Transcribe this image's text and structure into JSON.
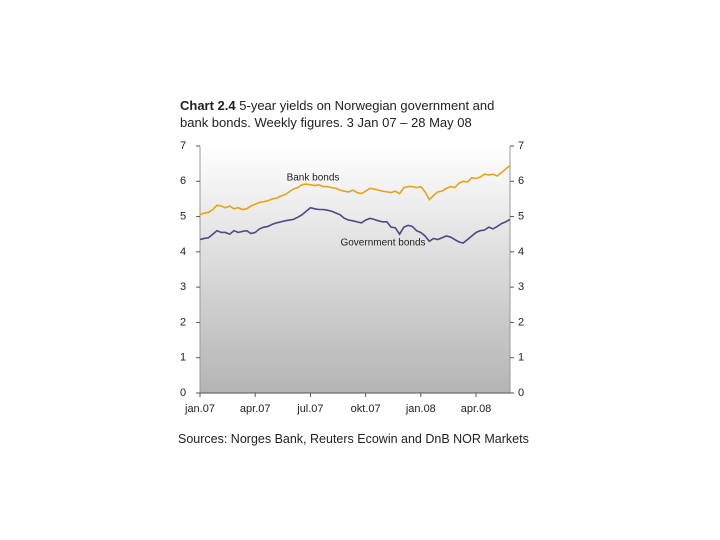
{
  "chart_data": {
    "type": "line",
    "title_label": "Chart 2.4",
    "title": "5-year yields on Norwegian government and bank bonds. Weekly figures. 3 Jan 07 – 28 May 08",
    "source": "Sources: Norges Bank, Reuters Ecowin and DnB NOR Markets",
    "categories": [
      "jan.07",
      null,
      null,
      null,
      null,
      null,
      null,
      null,
      null,
      null,
      null,
      null,
      null,
      "apr.07",
      null,
      null,
      null,
      null,
      null,
      null,
      null,
      null,
      null,
      null,
      null,
      null,
      "jul.07",
      null,
      null,
      null,
      null,
      null,
      null,
      null,
      null,
      null,
      null,
      null,
      null,
      "okt.07",
      null,
      null,
      null,
      null,
      null,
      null,
      null,
      null,
      null,
      null,
      null,
      null,
      "jan.08",
      null,
      null,
      null,
      null,
      null,
      null,
      null,
      null,
      null,
      null,
      null,
      null,
      "apr.08",
      null,
      null,
      null,
      null,
      null,
      null,
      null,
      null
    ],
    "series": [
      {
        "name": "Bank bonds",
        "color": "#e8a21c",
        "values": [
          5.05,
          5.1,
          5.12,
          5.2,
          5.32,
          5.3,
          5.25,
          5.3,
          5.22,
          5.25,
          5.2,
          5.22,
          5.3,
          5.35,
          5.4,
          5.42,
          5.45,
          5.5,
          5.52,
          5.58,
          5.62,
          5.7,
          5.78,
          5.82,
          5.9,
          5.92,
          5.9,
          5.88,
          5.9,
          5.85,
          5.85,
          5.82,
          5.8,
          5.75,
          5.72,
          5.7,
          5.75,
          5.68,
          5.65,
          5.72,
          5.8,
          5.78,
          5.75,
          5.72,
          5.7,
          5.68,
          5.72,
          5.65,
          5.82,
          5.85,
          5.85,
          5.82,
          5.85,
          5.7,
          5.48,
          5.6,
          5.7,
          5.72,
          5.8,
          5.85,
          5.82,
          5.95,
          6.0,
          5.98,
          6.1,
          6.08,
          6.12,
          6.2,
          6.18,
          6.2,
          6.15,
          6.25,
          6.35,
          6.45
        ]
      },
      {
        "name": "Government bonds",
        "color": "#4b4a86",
        "values": [
          4.35,
          4.38,
          4.4,
          4.5,
          4.6,
          4.55,
          4.55,
          4.5,
          4.6,
          4.55,
          4.58,
          4.6,
          4.52,
          4.55,
          4.65,
          4.7,
          4.72,
          4.78,
          4.82,
          4.85,
          4.88,
          4.9,
          4.92,
          4.98,
          5.05,
          5.15,
          5.25,
          5.22,
          5.2,
          5.2,
          5.18,
          5.15,
          5.1,
          5.05,
          4.95,
          4.9,
          4.88,
          4.85,
          4.82,
          4.9,
          4.95,
          4.92,
          4.88,
          4.85,
          4.85,
          4.7,
          4.68,
          4.5,
          4.7,
          4.75,
          4.72,
          4.6,
          4.55,
          4.45,
          4.3,
          4.38,
          4.35,
          4.4,
          4.45,
          4.42,
          4.35,
          4.28,
          4.25,
          4.35,
          4.45,
          4.55,
          4.6,
          4.62,
          4.7,
          4.65,
          4.72,
          4.8,
          4.85,
          4.92
        ]
      }
    ],
    "ylim": [
      0,
      7
    ],
    "yticks": [
      0,
      1,
      2,
      3,
      4,
      5,
      6,
      7
    ],
    "y2lim": [
      0,
      7
    ],
    "y2ticks": [
      0,
      1,
      2,
      3,
      4,
      5,
      6,
      7
    ]
  }
}
